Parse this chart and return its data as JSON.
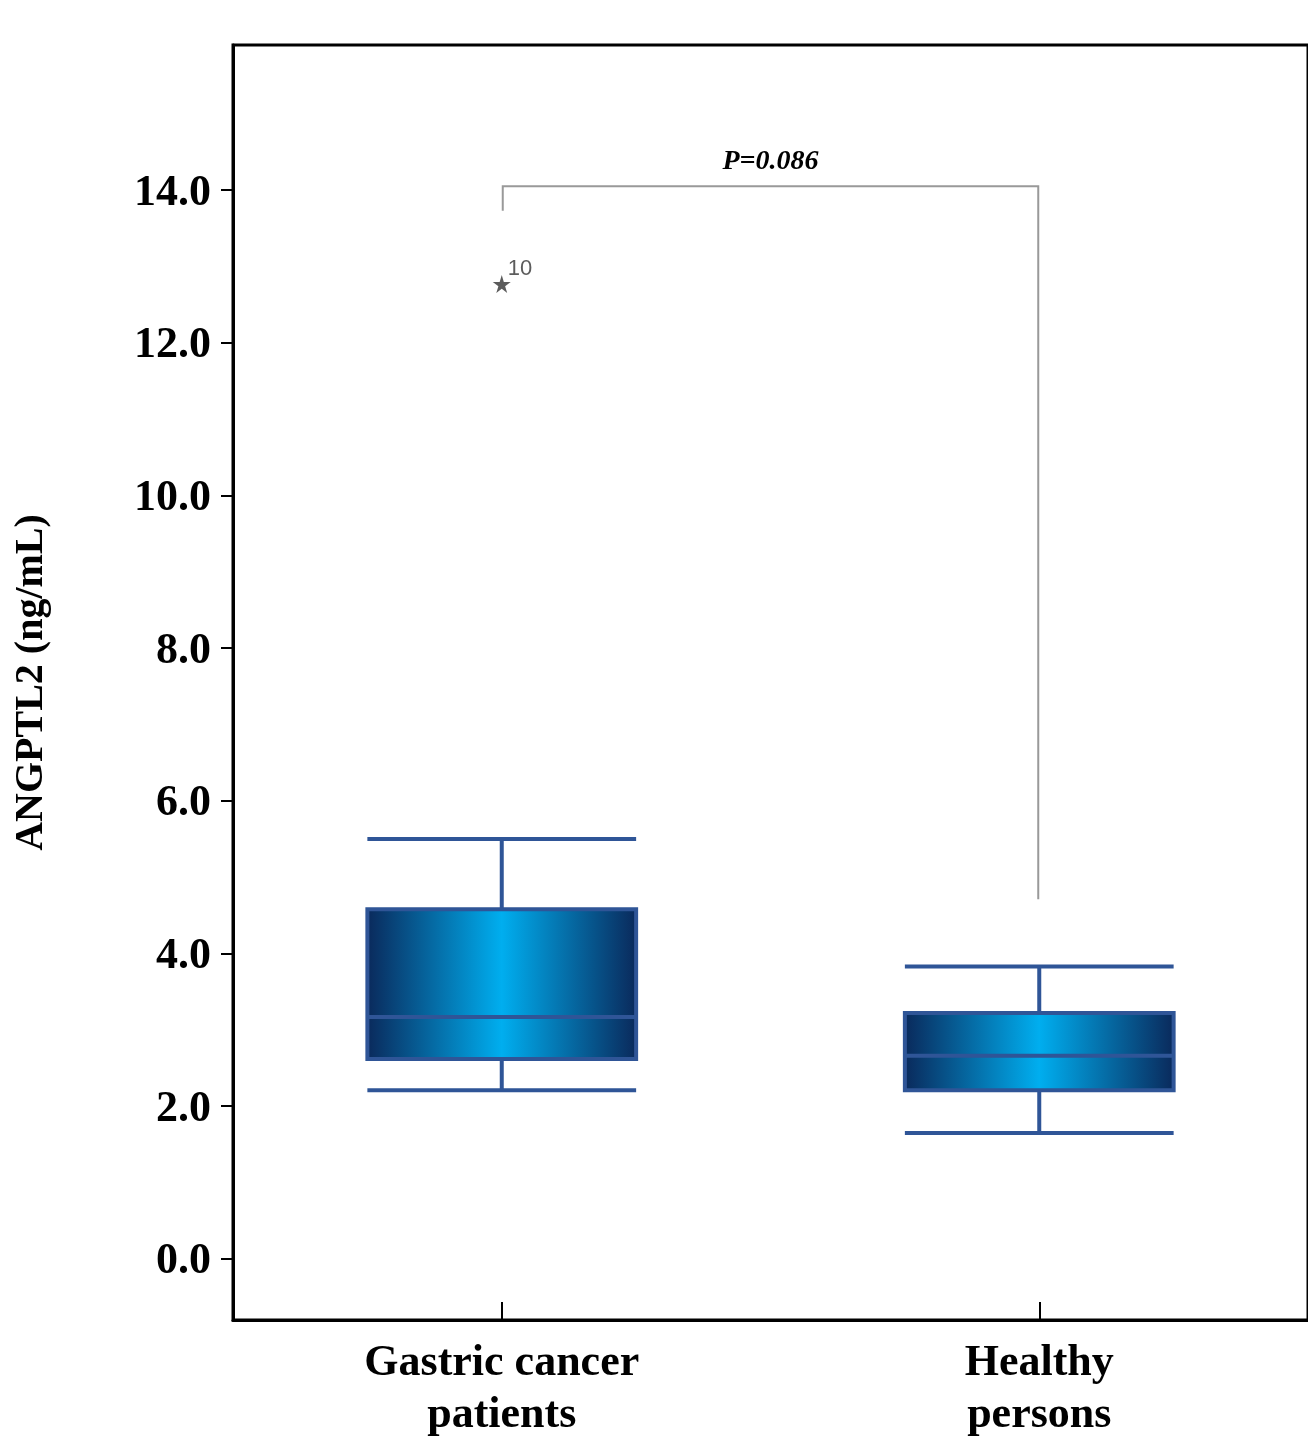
{
  "chart_data": {
    "type": "box",
    "ylabel": "ANGPTL2 (ng/mL)",
    "categories": [
      "Gastric cancer patients",
      "Healthy persons"
    ],
    "series": [
      {
        "color": "#2f5597",
        "boxes": [
          {
            "low": 2.21,
            "q1": 2.62,
            "median": 3.17,
            "q3": 4.58,
            "high": 5.5,
            "outliers": [
              12.77
            ]
          },
          {
            "low": 1.65,
            "q1": 2.21,
            "median": 2.66,
            "q3": 3.22,
            "high": 3.83
          }
        ]
      }
    ],
    "ylim": [
      -0.8,
      15.9
    ],
    "yticks": [
      {
        "value": 0,
        "label": "0.0"
      },
      {
        "value": 2,
        "label": "2.0"
      },
      {
        "value": 4,
        "label": "4.0"
      },
      {
        "value": 6,
        "label": "6.0"
      },
      {
        "value": 8,
        "label": "8.0"
      },
      {
        "value": 10,
        "label": "10.0"
      },
      {
        "value": 12,
        "label": "12.0"
      },
      {
        "value": 14,
        "label": "14.0"
      }
    ],
    "grid": false,
    "marker": "star",
    "annotations": [
      "P=0.086",
      "10"
    ]
  }
}
